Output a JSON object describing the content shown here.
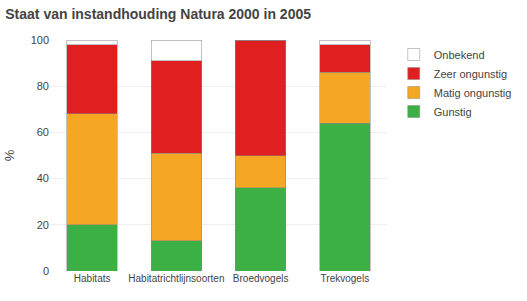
{
  "chart_data": {
    "type": "bar",
    "stacked": true,
    "title": "Staat van instandhouding Natura 2000 in 2005",
    "ylabel": "%",
    "categories": [
      "Habitats",
      "Habitatrichtlijnsoorten",
      "Broedvogels",
      "Trekvogels"
    ],
    "series": [
      {
        "name": "Gunstig",
        "color": "#3cb045",
        "values": [
          20,
          13,
          36,
          64
        ]
      },
      {
        "name": "Matig ongunstig",
        "color": "#f5a623",
        "values": [
          48,
          38,
          14,
          22
        ]
      },
      {
        "name": "Zeer ongunstig",
        "color": "#e02020",
        "values": [
          30,
          40,
          50,
          12
        ]
      },
      {
        "name": "Onbekend",
        "color": "#ffffff",
        "values": [
          2,
          9,
          0,
          2
        ]
      }
    ],
    "ylim": [
      0,
      100
    ],
    "yticks": [
      0,
      20,
      40,
      60,
      80,
      100
    ],
    "grid": true,
    "legend": "right"
  }
}
